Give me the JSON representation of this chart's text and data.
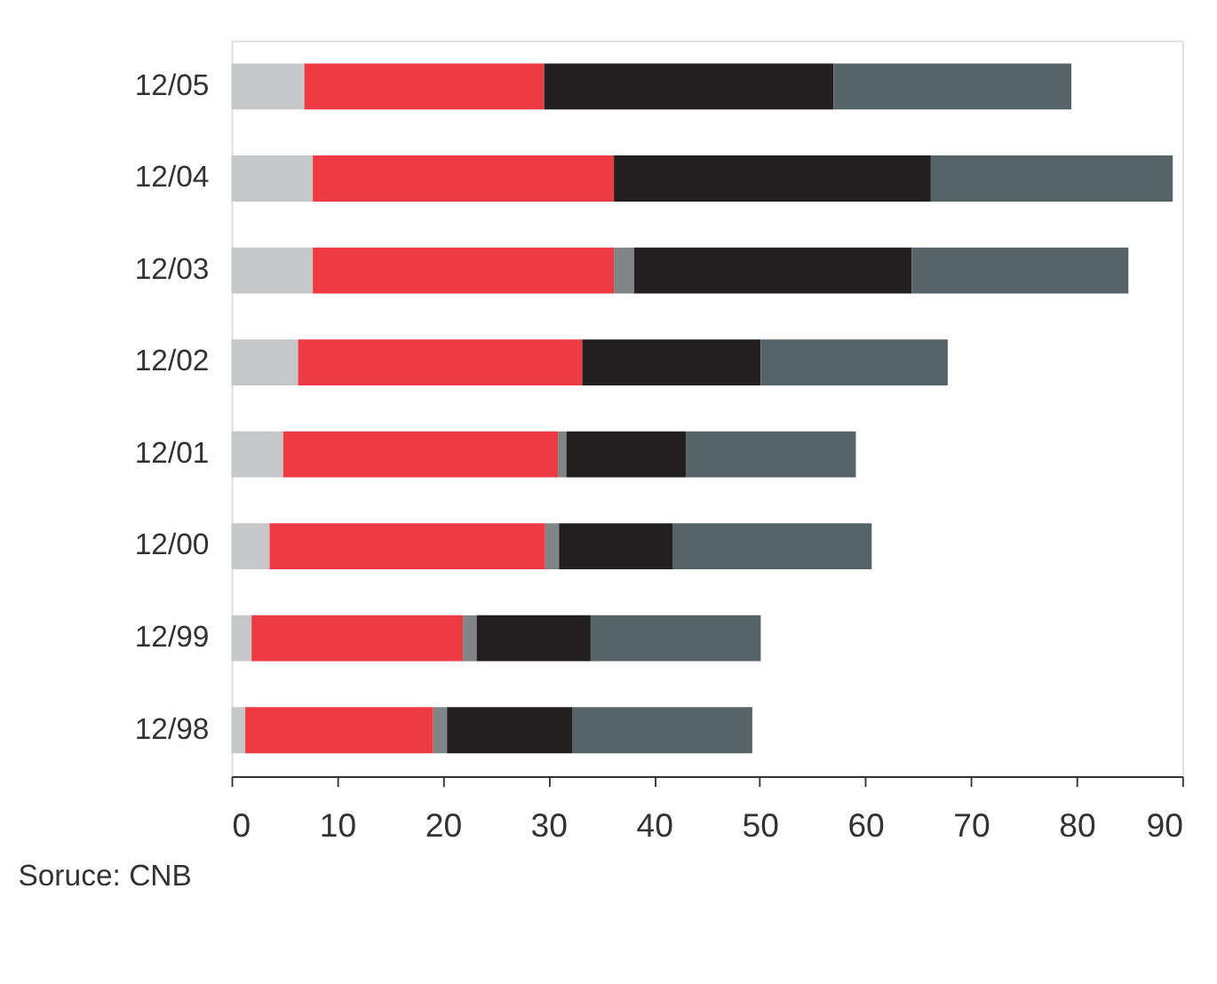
{
  "chart_data": {
    "type": "bar",
    "orientation": "horizontal",
    "stacked": true,
    "categories": [
      "12/05",
      "12/04",
      "12/03",
      "12/02",
      "12/01",
      "12/00",
      "12/99",
      "12/98"
    ],
    "series": [
      {
        "color": "#c6c7c9",
        "values": [
          6.9,
          7.7,
          7.7,
          6.3,
          4.9,
          3.6,
          1.9,
          1.3
        ]
      },
      {
        "color": "#ee3a43",
        "values": [
          22.7,
          28.5,
          28.5,
          26.9,
          26.0,
          26.1,
          20.0,
          17.8
        ]
      },
      {
        "color": "#808587",
        "values": [
          null,
          null,
          1.9,
          null,
          0.8,
          1.3,
          1.3,
          1.3
        ]
      },
      {
        "color": "#231f20",
        "values": [
          27.4,
          30.0,
          26.3,
          16.9,
          11.3,
          10.8,
          10.8,
          11.9
        ]
      },
      {
        "color": "#566369",
        "values": [
          22.5,
          22.9,
          20.5,
          17.7,
          16.1,
          18.8,
          16.1,
          17.0
        ]
      }
    ],
    "xlim": [
      0,
      90
    ],
    "xticks": [
      0,
      10,
      20,
      30,
      40,
      50,
      60,
      70,
      80,
      90
    ],
    "grid": false,
    "legend": false,
    "annotations": [
      "Soruce: CNB"
    ]
  }
}
